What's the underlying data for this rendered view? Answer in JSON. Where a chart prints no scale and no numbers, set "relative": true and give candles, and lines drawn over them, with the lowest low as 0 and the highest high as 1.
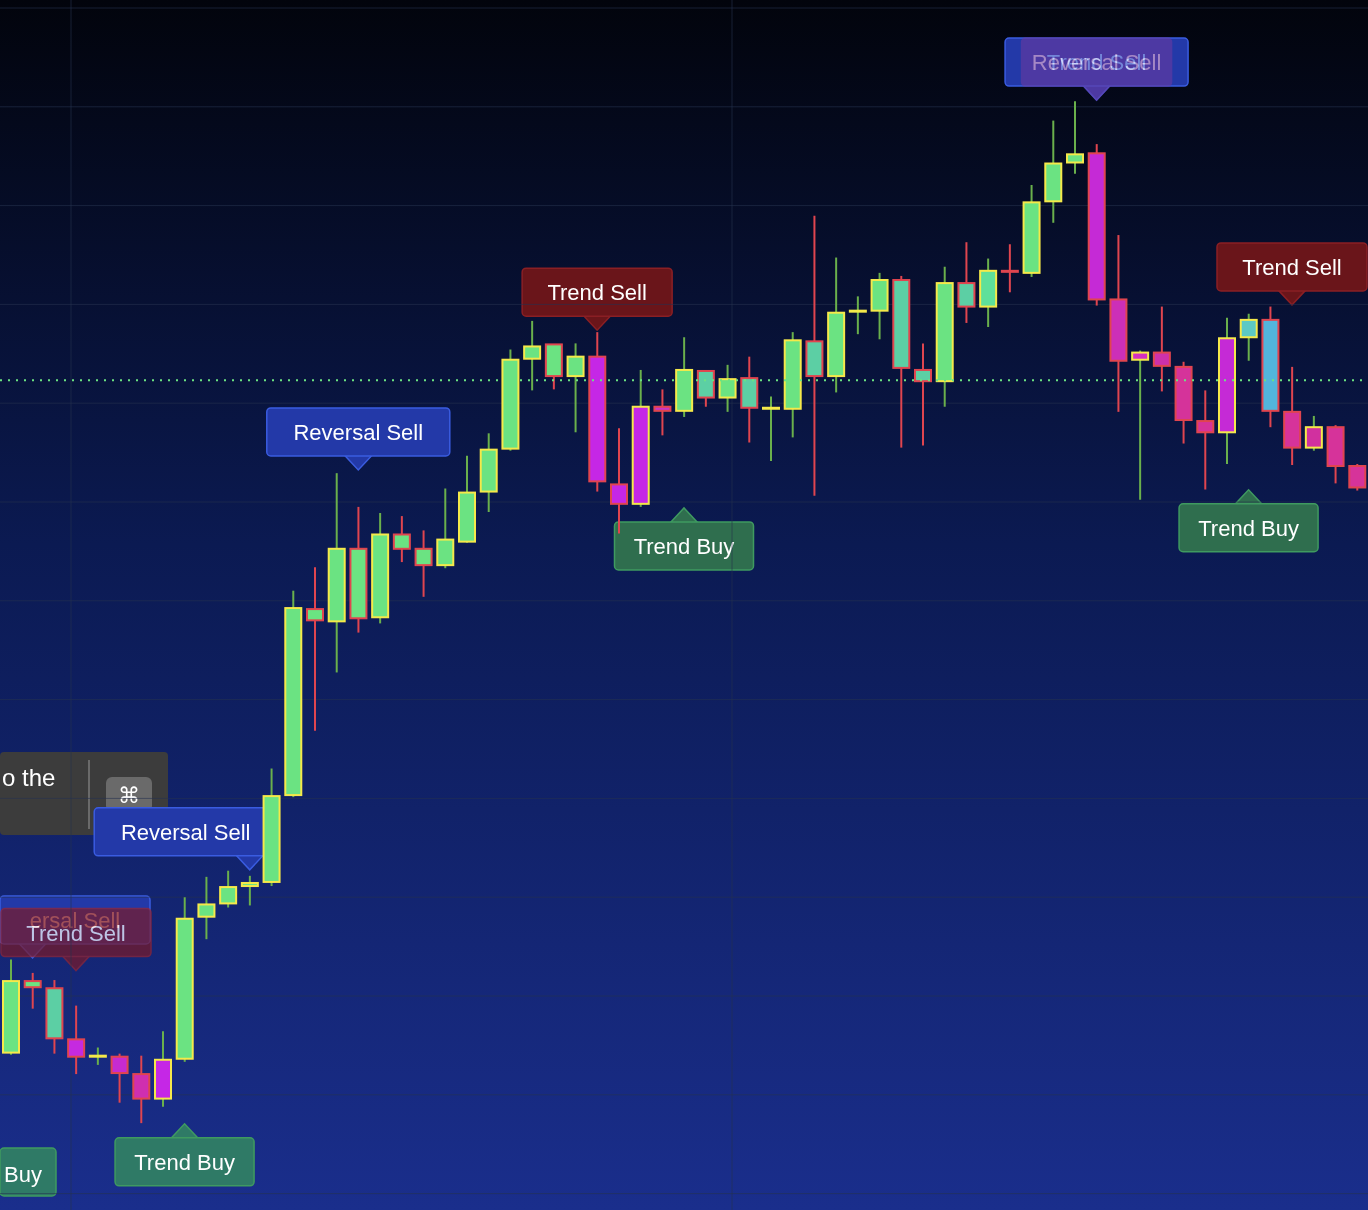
{
  "chart_data": {
    "type": "candlestick",
    "relative": true,
    "tick_labels": false,
    "grid": true,
    "categories": [
      null,
      null,
      null,
      null,
      null,
      null,
      null,
      null,
      null,
      null,
      null,
      null,
      null,
      null,
      null,
      null,
      null,
      null,
      null,
      null,
      null,
      null,
      null,
      null,
      null,
      null,
      null,
      null,
      null,
      null,
      null,
      null,
      null,
      null,
      null,
      null,
      null,
      null,
      null,
      null,
      null,
      null,
      null,
      null,
      null,
      null,
      null,
      null,
      null,
      null,
      null,
      null,
      null,
      null,
      null,
      null,
      null,
      null,
      null,
      null,
      null,
      null,
      null
    ],
    "ohlc": [
      [
        0.069,
        0.16,
        0.067,
        0.139
      ],
      [
        0.139,
        0.147,
        0.112,
        0.133
      ],
      [
        0.132,
        0.14,
        0.068,
        0.083
      ],
      [
        0.082,
        0.115,
        0.048,
        0.065
      ],
      [
        0.065,
        0.074,
        0.057,
        0.066
      ],
      [
        0.065,
        0.068,
        0.02,
        0.049
      ],
      [
        0.048,
        0.066,
        0.0,
        0.024
      ],
      [
        0.024,
        0.09,
        0.016,
        0.062
      ],
      [
        0.063,
        0.221,
        0.06,
        0.2
      ],
      [
        0.202,
        0.241,
        0.18,
        0.214
      ],
      [
        0.215,
        0.247,
        0.211,
        0.231
      ],
      [
        0.232,
        0.242,
        0.213,
        0.235
      ],
      [
        0.236,
        0.347,
        0.232,
        0.32
      ],
      [
        0.321,
        0.521,
        0.319,
        0.504
      ],
      [
        0.503,
        0.544,
        0.384,
        0.492
      ],
      [
        0.491,
        0.636,
        0.441,
        0.562
      ],
      [
        0.562,
        0.603,
        0.48,
        0.494
      ],
      [
        0.495,
        0.597,
        0.489,
        0.576
      ],
      [
        0.576,
        0.594,
        0.549,
        0.562
      ],
      [
        0.562,
        0.58,
        0.515,
        0.546
      ],
      [
        0.546,
        0.621,
        0.543,
        0.571
      ],
      [
        0.569,
        0.653,
        0.568,
        0.617
      ],
      [
        0.618,
        0.675,
        0.598,
        0.659
      ],
      [
        0.66,
        0.757,
        0.658,
        0.747
      ],
      [
        0.748,
        0.785,
        0.717,
        0.76
      ],
      [
        0.762,
        0.762,
        0.718,
        0.731
      ],
      [
        0.731,
        0.763,
        0.676,
        0.75
      ],
      [
        0.75,
        0.774,
        0.618,
        0.628
      ],
      [
        0.625,
        0.68,
        0.577,
        0.606
      ],
      [
        0.606,
        0.737,
        0.603,
        0.701
      ],
      [
        0.701,
        0.718,
        0.673,
        0.697
      ],
      [
        0.697,
        0.769,
        0.691,
        0.737
      ],
      [
        0.736,
        0.736,
        0.701,
        0.71
      ],
      [
        0.71,
        0.742,
        0.696,
        0.728
      ],
      [
        0.729,
        0.75,
        0.666,
        0.7
      ],
      [
        0.7,
        0.711,
        0.648,
        0.7
      ],
      [
        0.699,
        0.774,
        0.671,
        0.766
      ],
      [
        0.765,
        0.888,
        0.614,
        0.731
      ],
      [
        0.731,
        0.847,
        0.715,
        0.793
      ],
      [
        0.795,
        0.809,
        0.772,
        0.795
      ],
      [
        0.795,
        0.832,
        0.767,
        0.825
      ],
      [
        0.825,
        0.829,
        0.661,
        0.739
      ],
      [
        0.737,
        0.763,
        0.663,
        0.726
      ],
      [
        0.726,
        0.838,
        0.701,
        0.822
      ],
      [
        0.822,
        0.862,
        0.783,
        0.799
      ],
      [
        0.799,
        0.846,
        0.779,
        0.834
      ],
      [
        0.834,
        0.86,
        0.813,
        0.833
      ],
      [
        0.832,
        0.918,
        0.828,
        0.901
      ],
      [
        0.902,
        0.981,
        0.881,
        0.939
      ],
      [
        0.94,
        1.0,
        0.929,
        0.948
      ],
      [
        0.949,
        0.958,
        0.8,
        0.806
      ],
      [
        0.806,
        0.869,
        0.696,
        0.746
      ],
      [
        0.747,
        0.756,
        0.61,
        0.754
      ],
      [
        0.754,
        0.799,
        0.716,
        0.741
      ],
      [
        0.74,
        0.745,
        0.665,
        0.688
      ],
      [
        0.687,
        0.717,
        0.62,
        0.676
      ],
      [
        0.676,
        0.788,
        0.645,
        0.768
      ],
      [
        0.769,
        0.792,
        0.746,
        0.786
      ],
      [
        0.786,
        0.799,
        0.681,
        0.697
      ],
      [
        0.696,
        0.74,
        0.644,
        0.661
      ],
      [
        0.661,
        0.692,
        0.658,
        0.681
      ],
      [
        0.681,
        0.683,
        0.626,
        0.643
      ],
      [
        0.643,
        0.645,
        0.619,
        0.622
      ]
    ],
    "colors": [
      "#6be382",
      "#6be382",
      "#5ccfa4",
      "#c52ae0",
      "#6be382",
      "#c62bd0",
      "#cf2fb0",
      "#c527e6",
      "#6be382",
      "#6be382",
      "#6be382",
      "#6be382",
      "#6be382",
      "#6be382",
      "#6be382",
      "#6be382",
      "#6be382",
      "#6be382",
      "#6be382",
      "#6be382",
      "#6be382",
      "#6be382",
      "#6be382",
      "#6be382",
      "#6be382",
      "#6be382",
      "#6be382",
      "#c527e6",
      "#c527e6",
      "#c527e6",
      "#c835c8",
      "#6be382",
      "#5ccfa4",
      "#6be382",
      "#5ccfa4",
      "#e0454f",
      "#6be382",
      "#5ccfa4",
      "#6be382",
      "#6be382",
      "#6be382",
      "#5ccfa4",
      "#5ccfa4",
      "#6be382",
      "#5ccfa4",
      "#5ee09a",
      "#5ccfa4",
      "#6be382",
      "#6be382",
      "#6be382",
      "#c52ad6",
      "#cc2fb8",
      "#d42fc0",
      "#cd31ab",
      "#d5339a",
      "#d6339a",
      "#c52ad6",
      "#5cc9c4",
      "#52b5dc",
      "#d6339a",
      "#d1309f",
      "#d6339a",
      "#d6339a"
    ],
    "ref_lines": [
      {
        "axis": "y",
        "value": 0.727,
        "color": "#6be382",
        "line_style": "dotted"
      }
    ],
    "annotations": [
      "Reversal Sell",
      "Trend Sell",
      "Trend Sell",
      "Reversal Sell",
      "Reversal Sell",
      "ersal Sell",
      "Trend Sell",
      "Trend Buy",
      "Trend Buy",
      "Trend Buy",
      "Trend Sell",
      "Buy",
      "o the",
      "⌘"
    ]
  }
}
